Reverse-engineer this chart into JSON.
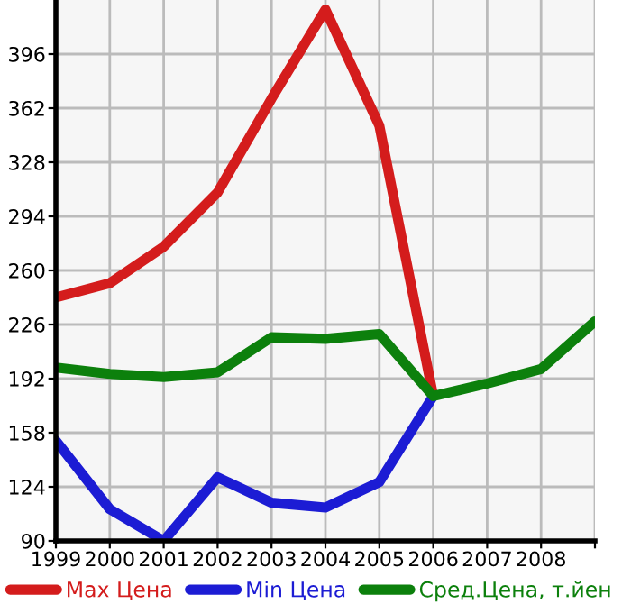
{
  "chart_data": {
    "type": "line",
    "categories": [
      "1999",
      "2000",
      "2001",
      "2002",
      "2003",
      "2004",
      "2005",
      "2006",
      "2007",
      "2008",
      null
    ],
    "series": [
      {
        "name": "Max Цена",
        "color": "#d41c1c",
        "values": [
          243,
          252,
          275,
          309,
          368,
          424,
          351,
          181,
          null,
          null,
          null
        ]
      },
      {
        "name": "Min Цена",
        "color": "#1c1cd4",
        "values": [
          153,
          110,
          90,
          130,
          114,
          111,
          127,
          181,
          null,
          null,
          null
        ]
      },
      {
        "name": "Сред.Цена, т.йен",
        "color": "#0c800c",
        "values": [
          199,
          195,
          193,
          196,
          218,
          217,
          220,
          181,
          189,
          198,
          228
        ]
      }
    ],
    "ylim": [
      90,
      430
    ],
    "yticks": [
      90,
      124,
      158,
      192,
      226,
      260,
      294,
      328,
      362,
      396
    ],
    "grid": true,
    "legend": "bottom",
    "marker": "none",
    "line_style": "solid"
  }
}
